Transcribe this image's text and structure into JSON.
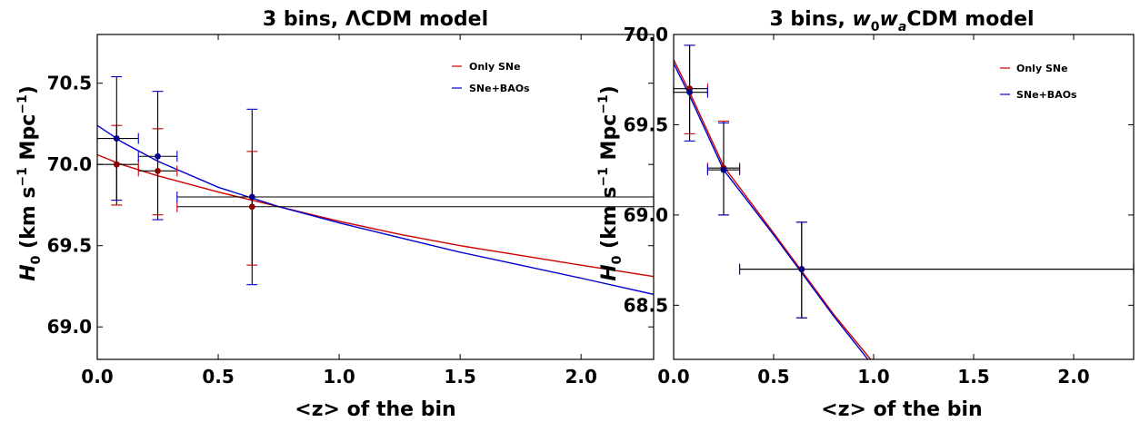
{
  "chart_data": [
    {
      "type": "scatter",
      "title": "3 bins, ΛCDM model",
      "title_parts": {
        "prefix": "3 bins, ",
        "lambda": "Λ",
        "suffix": "CDM model"
      },
      "xlabel": "<z> of the bin",
      "ylabel": {
        "main": "H",
        "sub": "0",
        "units_open": " (km s",
        "exp1": "−1",
        "units_mid": " Mpc",
        "exp2": "−1",
        "units_close": ")"
      },
      "xlim": [
        0,
        2.3
      ],
      "ylim": [
        68.8,
        70.8
      ],
      "xticks": [
        0.0,
        0.5,
        1.0,
        1.5,
        2.0
      ],
      "xtick_labels": [
        "0.0",
        "0.5",
        "1.0",
        "1.5",
        "2.0"
      ],
      "yticks": [
        69.0,
        69.5,
        70.0,
        70.5
      ],
      "ytick_labels": [
        "69.0",
        "69.5",
        "70.0",
        "70.5"
      ],
      "legend_position": "top-right",
      "series": [
        {
          "name": "Only SNe",
          "color": "#cc0000",
          "marker_color": "#8b0000",
          "curve": {
            "x": [
              0.0,
              0.1,
              0.25,
              0.5,
              0.75,
              1.0,
              1.25,
              1.5,
              1.75,
              2.0,
              2.3
            ],
            "y": [
              70.06,
              70.0,
              69.93,
              69.83,
              69.74,
              69.65,
              69.57,
              69.5,
              69.44,
              69.38,
              69.31
            ]
          },
          "points": [
            {
              "x": 0.08,
              "y": 70.0,
              "xerr_lo": 0.08,
              "xerr_hi": 0.09,
              "yerr_lo": 0.25,
              "yerr_hi": 0.24
            },
            {
              "x": 0.25,
              "y": 69.96,
              "xerr_lo": 0.08,
              "xerr_hi": 0.08,
              "yerr_lo": 0.27,
              "yerr_hi": 0.26
            },
            {
              "x": 0.64,
              "y": 69.74,
              "xerr_lo": 0.31,
              "xerr_hi": 1.66,
              "yerr_lo": 0.36,
              "yerr_hi": 0.34
            }
          ]
        },
        {
          "name": "SNe+BAOs",
          "color": "#0000cc",
          "marker_color": "#00008b",
          "curve": {
            "x": [
              0.0,
              0.1,
              0.25,
              0.5,
              0.75,
              1.0,
              1.25,
              1.5,
              1.75,
              2.0,
              2.3
            ],
            "y": [
              70.24,
              70.14,
              70.02,
              69.86,
              69.74,
              69.64,
              69.55,
              69.46,
              69.38,
              69.3,
              69.2
            ]
          },
          "points": [
            {
              "x": 0.08,
              "y": 70.16,
              "xerr_lo": 0.08,
              "xerr_hi": 0.09,
              "yerr_lo": 0.38,
              "yerr_hi": 0.38
            },
            {
              "x": 0.25,
              "y": 70.05,
              "xerr_lo": 0.08,
              "xerr_hi": 0.08,
              "yerr_lo": 0.39,
              "yerr_hi": 0.4
            },
            {
              "x": 0.64,
              "y": 69.8,
              "xerr_lo": 0.31,
              "xerr_hi": 1.66,
              "yerr_lo": 0.54,
              "yerr_hi": 0.54
            }
          ]
        }
      ]
    },
    {
      "type": "scatter",
      "title": "3 bins, w0waCDM model",
      "title_parts": {
        "prefix": "3 bins, ",
        "w": "w",
        "w_sub": "0",
        "wa": "w",
        "wa_sub": "a",
        "suffix": "CDM model"
      },
      "xlabel": "<z> of the bin",
      "ylabel": {
        "main": "H",
        "sub": "0",
        "units_open": " (km s",
        "exp1": "−1",
        "units_mid": " Mpc",
        "exp2": "−1",
        "units_close": ")"
      },
      "xlim": [
        0,
        2.3
      ],
      "ylim": [
        68.2,
        70.0
      ],
      "xticks": [
        0.0,
        0.5,
        1.0,
        1.5,
        2.0
      ],
      "xtick_labels": [
        "0.0",
        "0.5",
        "1.0",
        "1.5",
        "2.0"
      ],
      "yticks": [
        68.5,
        69.0,
        69.5,
        70.0
      ],
      "ytick_labels": [
        "68.5",
        "69.0",
        "69.5",
        "70.0"
      ],
      "legend_position": "top-right",
      "series": [
        {
          "name": "Only SNe",
          "color": "#cc0000",
          "marker_color": "#8b0000",
          "curve": {
            "x": [
              0.0,
              0.08,
              0.25,
              0.5,
              0.64,
              0.8,
              1.0
            ],
            "y": [
              69.86,
              69.68,
              69.27,
              68.9,
              68.69,
              68.45,
              68.18
            ]
          },
          "points": [
            {
              "x": 0.08,
              "y": 69.7,
              "xerr_lo": 0.08,
              "xerr_hi": 0.09,
              "yerr_lo": 0.25,
              "yerr_hi": 0.24
            },
            {
              "x": 0.25,
              "y": 69.26,
              "xerr_lo": 0.08,
              "xerr_hi": 0.08,
              "yerr_lo": 0.26,
              "yerr_hi": 0.26
            },
            {
              "x": 0.64,
              "y": 68.7,
              "xerr_lo": 0.31,
              "xerr_hi": 1.66,
              "yerr_lo": 0.27,
              "yerr_hi": 0.26
            }
          ]
        },
        {
          "name": "SNe+BAOs",
          "color": "#0000cc",
          "marker_color": "#00008b",
          "curve": {
            "x": [
              0.0,
              0.08,
              0.25,
              0.5,
              0.64,
              0.8,
              1.0
            ],
            "y": [
              69.84,
              69.66,
              69.25,
              68.89,
              68.68,
              68.44,
              68.16
            ]
          },
          "points": [
            {
              "x": 0.08,
              "y": 69.68,
              "xerr_lo": 0.08,
              "xerr_hi": 0.09,
              "yerr_lo": 0.27,
              "yerr_hi": 0.26
            },
            {
              "x": 0.25,
              "y": 69.25,
              "xerr_lo": 0.08,
              "xerr_hi": 0.08,
              "yerr_lo": 0.25,
              "yerr_hi": 0.26
            },
            {
              "x": 0.64,
              "y": 68.7,
              "xerr_lo": 0.31,
              "xerr_hi": 1.66,
              "yerr_lo": 0.27,
              "yerr_hi": 0.26
            }
          ]
        }
      ]
    }
  ]
}
